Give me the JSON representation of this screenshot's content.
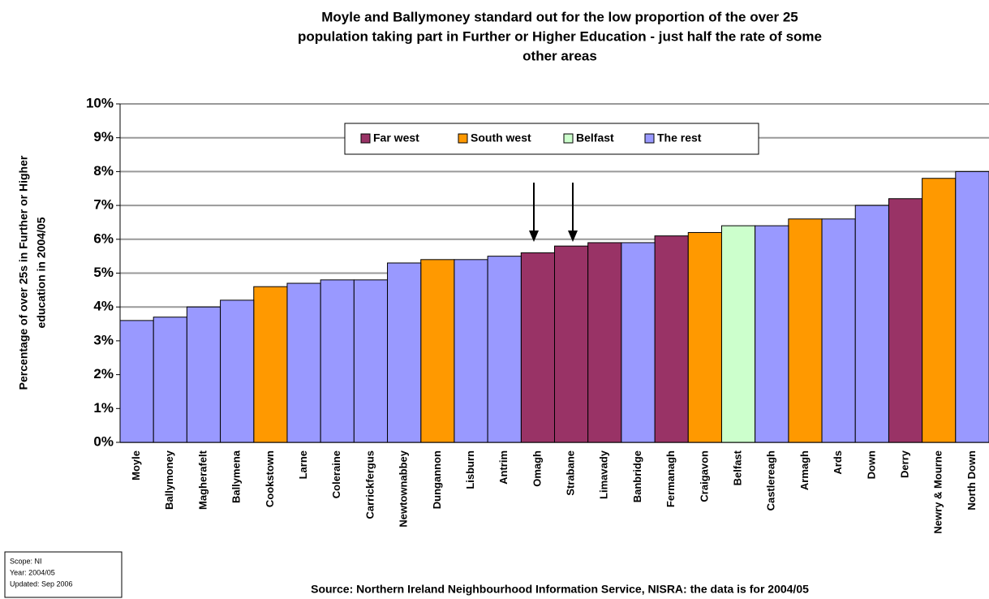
{
  "chart_data": {
    "type": "bar",
    "title": [
      "Moyle and Ballymoney standard out for the low proportion of the over 25",
      "population taking part in Further or Higher Education - just half the rate of some",
      "other areas"
    ],
    "y_label": [
      "Percentage of over 25s in Further or Higher",
      "education in 2004/05"
    ],
    "source": "Source: Northern Ireland Neighbourhood Information Service, NISRA: the data is for 2004/05",
    "info": [
      "Scope: NI",
      "Year: 2004/05",
      "Updated: Sep 2006"
    ],
    "categories": [
      "Moyle",
      "Ballymoney",
      "Magherafelt",
      "Ballymena",
      "Cookstown",
      "Larne",
      "Coleraine",
      "Carrickfergus",
      "Newtownabbey",
      "Dungannon",
      "Lisburn",
      "Antrim",
      "Omagh",
      "Strabane",
      "Limavady",
      "Banbridge",
      "Fermanagh",
      "Craigavon",
      "Belfast",
      "Castlereagh",
      "Armagh",
      "Ards",
      "Down",
      "Derry",
      "Newry & Mourne",
      "North Down"
    ],
    "series": [
      {
        "name": "Far west",
        "color": "#993366",
        "values": [
          null,
          null,
          null,
          null,
          null,
          null,
          null,
          null,
          null,
          null,
          null,
          null,
          5.6,
          5.8,
          5.9,
          null,
          6.1,
          null,
          null,
          null,
          null,
          null,
          null,
          7.2,
          null,
          null
        ]
      },
      {
        "name": "South west",
        "color": "#ff9900",
        "values": [
          null,
          null,
          null,
          null,
          4.6,
          null,
          null,
          null,
          null,
          5.4,
          null,
          null,
          null,
          null,
          null,
          null,
          null,
          6.2,
          null,
          null,
          6.6,
          null,
          null,
          null,
          7.8,
          null
        ]
      },
      {
        "name": "Belfast",
        "color": "#ccffcc",
        "values": [
          null,
          null,
          null,
          null,
          null,
          null,
          null,
          null,
          null,
          null,
          null,
          null,
          null,
          null,
          null,
          null,
          null,
          null,
          6.4,
          null,
          null,
          null,
          null,
          null,
          null,
          null
        ]
      },
      {
        "name": "The rest",
        "color": "#9999ff",
        "values": [
          3.6,
          3.7,
          4.0,
          4.2,
          null,
          4.7,
          4.8,
          4.8,
          5.3,
          null,
          5.4,
          5.5,
          null,
          null,
          null,
          5.9,
          null,
          null,
          null,
          6.4,
          null,
          6.6,
          7.0,
          null,
          null,
          8.0
        ]
      }
    ],
    "ylim": [
      0,
      10
    ],
    "yticks": [
      {
        "value": 0,
        "label": "0%"
      },
      {
        "value": 1,
        "label": "1%"
      },
      {
        "value": 2,
        "label": "2%"
      },
      {
        "value": 3,
        "label": "3%"
      },
      {
        "value": 4,
        "label": "4%"
      },
      {
        "value": 5,
        "label": "5%"
      },
      {
        "value": 6,
        "label": "6%"
      },
      {
        "value": 7,
        "label": "7%"
      },
      {
        "value": 8,
        "label": "8%"
      },
      {
        "value": 9,
        "label": "9%"
      },
      {
        "value": 10,
        "label": "10%"
      }
    ],
    "grid": true
  }
}
